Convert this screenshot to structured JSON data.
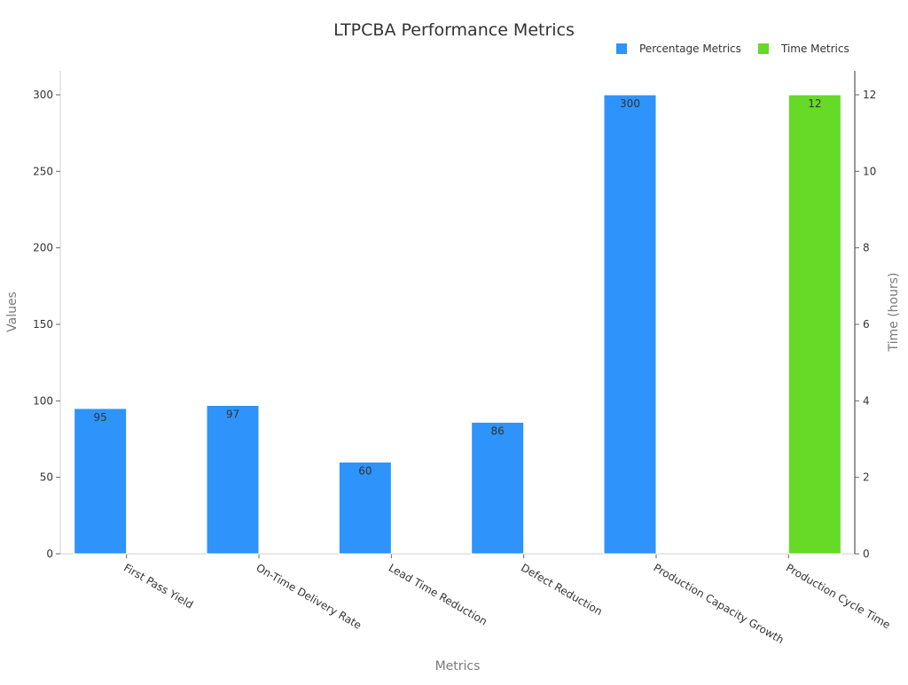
{
  "chart_data": {
    "type": "bar",
    "title": "LTPCBA Performance Metrics",
    "xlabel": "Metrics",
    "ylabel": "Values",
    "y2label": "Time (hours)",
    "categories": [
      "First Pass Yield",
      "On-Time Delivery Rate",
      "Lead Time Reduction",
      "Defect Reduction",
      "Production Capacity Growth",
      "Production Cycle Time"
    ],
    "ylim": [
      0,
      300
    ],
    "y2lim": [
      0,
      12
    ],
    "yticks": [
      0,
      50,
      100,
      150,
      200,
      250,
      300
    ],
    "y2ticks": [
      0,
      2,
      4,
      6,
      8,
      10,
      12
    ],
    "legend_position": "top-right",
    "grid": false,
    "series": [
      {
        "name": "Percentage Metrics",
        "axis": "left",
        "color": "#2e93fa",
        "values": [
          95,
          97,
          60,
          86,
          300,
          null
        ],
        "labels": [
          "95",
          "97",
          "60",
          "86",
          "300",
          ""
        ]
      },
      {
        "name": "Time Metrics",
        "axis": "right",
        "color": "#66da26",
        "values": [
          null,
          null,
          null,
          null,
          null,
          12
        ],
        "labels": [
          "",
          "",
          "",
          "",
          "",
          "12"
        ]
      }
    ]
  }
}
